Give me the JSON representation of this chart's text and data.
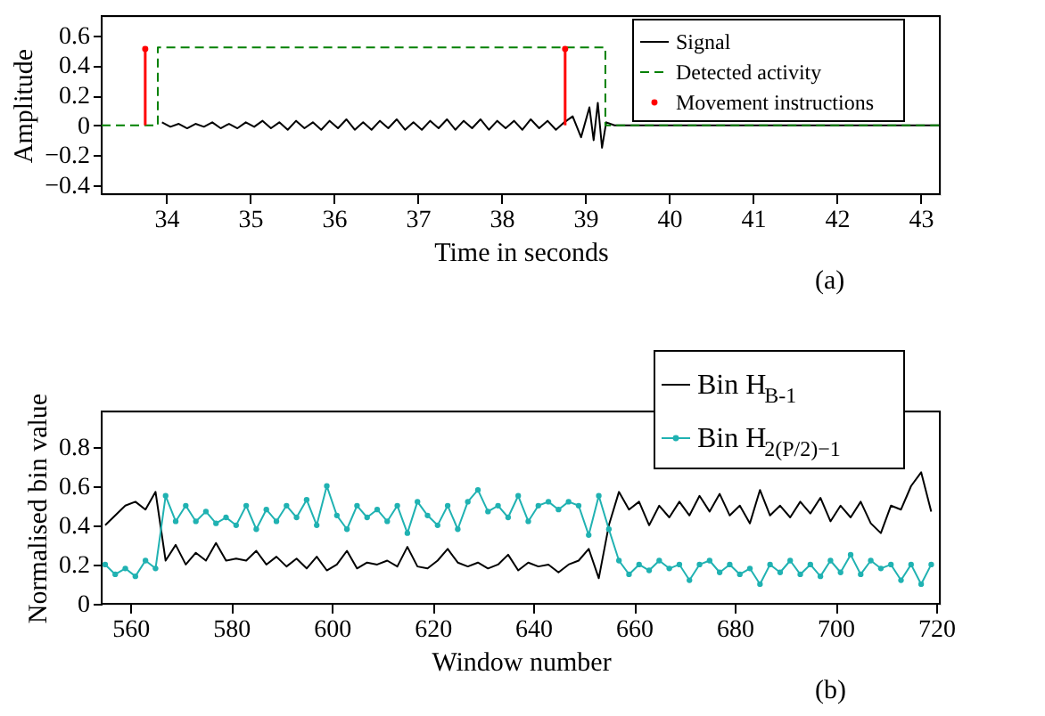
{
  "chart_data": [
    {
      "type": "line",
      "xlabel": "Time in seconds",
      "ylabel": "Amplitude",
      "xlim": [
        33.23,
        43.23
      ],
      "ylim": [
        -0.46,
        0.73
      ],
      "xticks": [
        34,
        35,
        36,
        37,
        38,
        39,
        40,
        41,
        42,
        43
      ],
      "yticks": [
        -0.4,
        -0.2,
        0,
        0.2,
        0.4,
        0.6
      ],
      "grid": false,
      "legend": "top right",
      "annotations": [
        "(a)"
      ],
      "series": [
        {
          "name": "Signal",
          "color": "#000000",
          "type": "line",
          "marker": "none",
          "line_style": "solid",
          "x": [
            33.95,
            34.05,
            34.15,
            34.25,
            34.35,
            34.45,
            34.55,
            34.65,
            34.75,
            34.85,
            34.95,
            35.05,
            35.15,
            35.25,
            35.35,
            35.45,
            35.55,
            35.65,
            35.75,
            35.85,
            35.95,
            36.05,
            36.15,
            36.25,
            36.35,
            36.45,
            36.55,
            36.65,
            36.75,
            36.85,
            36.95,
            37.05,
            37.15,
            37.25,
            37.35,
            37.45,
            37.55,
            37.65,
            37.75,
            37.85,
            37.95,
            38.05,
            38.15,
            38.25,
            38.35,
            38.45,
            38.55,
            38.65,
            38.75,
            38.85,
            38.95,
            39.05,
            39.1,
            39.15,
            39.2,
            39.25,
            39.35,
            43.23
          ],
          "values": [
            0.02,
            -0.01,
            0.01,
            -0.02,
            0.01,
            -0.01,
            0.02,
            -0.02,
            0.01,
            -0.02,
            0.02,
            -0.01,
            0.03,
            -0.02,
            0.02,
            -0.03,
            0.03,
            -0.02,
            0.02,
            -0.03,
            0.03,
            -0.02,
            0.04,
            -0.03,
            0.02,
            -0.03,
            0.03,
            -0.02,
            0.04,
            -0.03,
            0.02,
            -0.03,
            0.03,
            -0.02,
            0.04,
            -0.03,
            0.03,
            -0.02,
            0.04,
            -0.03,
            0.03,
            -0.02,
            0.03,
            -0.03,
            0.04,
            -0.02,
            0.03,
            -0.03,
            0.02,
            0.06,
            -0.08,
            0.12,
            -0.1,
            0.15,
            -0.15,
            0.02,
            0,
            0
          ]
        },
        {
          "name": "Detected activity",
          "color": "#008000",
          "type": "step",
          "marker": "none",
          "line_style": "dashed",
          "x": [
            33.23,
            33.9,
            39.24,
            43.23
          ],
          "values": [
            0,
            0.52,
            0,
            0
          ]
        },
        {
          "name": "Movement instructions",
          "color": "#ff0000",
          "type": "lollipop",
          "marker": "circle",
          "x": [
            33.75,
            38.76
          ],
          "values": [
            0.51,
            0.51
          ]
        }
      ]
    },
    {
      "type": "line",
      "xlabel": "Window number",
      "ylabel": "Normalised bin value",
      "xlim": [
        554.3,
        720.7
      ],
      "ylim": [
        0,
        0.98
      ],
      "xticks": [
        560,
        580,
        600,
        620,
        640,
        660,
        680,
        700,
        720
      ],
      "yticks": [
        0,
        0.2,
        0.4,
        0.6,
        0.8
      ],
      "grid": false,
      "legend": "top right",
      "annotations": [
        "(b)"
      ],
      "x": [
        555,
        557,
        559,
        561,
        563,
        565,
        567,
        569,
        571,
        573,
        575,
        577,
        579,
        581,
        583,
        585,
        587,
        589,
        591,
        593,
        595,
        597,
        599,
        601,
        603,
        605,
        607,
        609,
        611,
        613,
        615,
        617,
        619,
        621,
        623,
        625,
        627,
        629,
        631,
        633,
        635,
        637,
        639,
        641,
        643,
        645,
        647,
        649,
        651,
        653,
        655,
        657,
        659,
        661,
        663,
        665,
        667,
        669,
        671,
        673,
        675,
        677,
        679,
        681,
        683,
        685,
        687,
        689,
        691,
        693,
        695,
        697,
        699,
        701,
        703,
        705,
        707,
        709,
        711,
        713,
        715,
        717,
        719
      ],
      "series": [
        {
          "name": "Bin H$_{B-1}$",
          "color": "#000000",
          "marker": "none",
          "line_style": "solid",
          "values": [
            0.4,
            0.45,
            0.5,
            0.52,
            0.48,
            0.57,
            0.22,
            0.3,
            0.2,
            0.26,
            0.22,
            0.31,
            0.22,
            0.23,
            0.22,
            0.27,
            0.2,
            0.24,
            0.19,
            0.23,
            0.18,
            0.24,
            0.17,
            0.2,
            0.27,
            0.18,
            0.21,
            0.2,
            0.22,
            0.19,
            0.29,
            0.19,
            0.18,
            0.22,
            0.28,
            0.21,
            0.19,
            0.21,
            0.18,
            0.2,
            0.25,
            0.17,
            0.21,
            0.19,
            0.2,
            0.16,
            0.2,
            0.22,
            0.28,
            0.13,
            0.4,
            0.57,
            0.48,
            0.52,
            0.4,
            0.5,
            0.44,
            0.52,
            0.45,
            0.55,
            0.47,
            0.56,
            0.45,
            0.5,
            0.41,
            0.58,
            0.45,
            0.5,
            0.44,
            0.52,
            0.46,
            0.54,
            0.42,
            0.5,
            0.44,
            0.52,
            0.41,
            0.36,
            0.5,
            0.48,
            0.6,
            0.67,
            0.47
          ]
        },
        {
          "name": "Bin H$_{2(P/2)−1}$",
          "color": "#20b2b2",
          "marker": "circle",
          "line_style": "solid",
          "values": [
            0.2,
            0.15,
            0.18,
            0.14,
            0.22,
            0.18,
            0.55,
            0.42,
            0.5,
            0.42,
            0.47,
            0.41,
            0.44,
            0.4,
            0.5,
            0.38,
            0.48,
            0.42,
            0.5,
            0.44,
            0.53,
            0.4,
            0.6,
            0.45,
            0.38,
            0.5,
            0.44,
            0.48,
            0.42,
            0.5,
            0.36,
            0.52,
            0.45,
            0.4,
            0.5,
            0.38,
            0.52,
            0.58,
            0.47,
            0.5,
            0.44,
            0.55,
            0.42,
            0.5,
            0.52,
            0.48,
            0.52,
            0.5,
            0.35,
            0.55,
            0.38,
            0.22,
            0.15,
            0.2,
            0.17,
            0.22,
            0.18,
            0.2,
            0.12,
            0.2,
            0.22,
            0.16,
            0.2,
            0.15,
            0.18,
            0.1,
            0.2,
            0.16,
            0.22,
            0.15,
            0.2,
            0.14,
            0.22,
            0.16,
            0.25,
            0.15,
            0.22,
            0.18,
            0.2,
            0.12,
            0.2,
            0.1,
            0.2
          ]
        }
      ]
    }
  ]
}
